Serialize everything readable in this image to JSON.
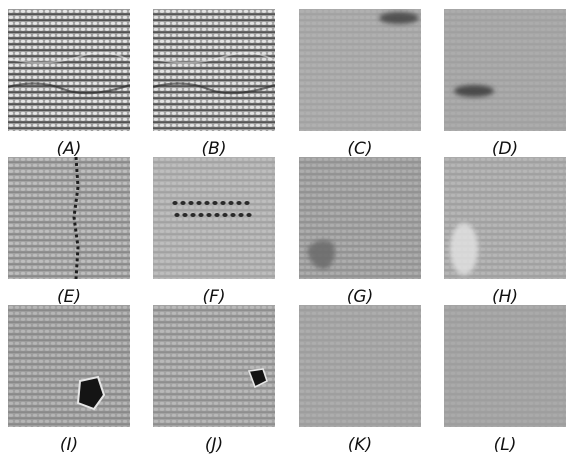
{
  "figure": {
    "panels": [
      {
        "id": "A",
        "label": "(A)",
        "shade": "#9a9a9a",
        "rib": "#3a3a3a",
        "hi": "#e9e9e9",
        "contrast": 0.95,
        "defect": "broken-yarn"
      },
      {
        "id": "B",
        "label": "(B)",
        "shade": "#9c9c9c",
        "rib": "#3d3d3d",
        "hi": "#e6e6e6",
        "contrast": 0.95,
        "defect": "broken-yarn"
      },
      {
        "id": "C",
        "label": "(C)",
        "shade": "#a9a9a9",
        "rib": "#8e8e8e",
        "hi": "#bdbdbd",
        "contrast": 0.35,
        "defect": "dark-stain-top"
      },
      {
        "id": "D",
        "label": "(D)",
        "shade": "#a6a6a6",
        "rib": "#8f8f8f",
        "hi": "#bababa",
        "contrast": 0.3,
        "defect": "dark-stain-left"
      },
      {
        "id": "E",
        "label": "(E)",
        "shade": "#a2a2a2",
        "rib": "#6e6e6e",
        "hi": "#d0d0d0",
        "contrast": 0.6,
        "defect": "vertical-line"
      },
      {
        "id": "F",
        "label": "(F)",
        "shade": "#b0b0b0",
        "rib": "#8a8a8a",
        "hi": "#cfcfcf",
        "contrast": 0.45,
        "defect": "dotted-row"
      },
      {
        "id": "G",
        "label": "(G)",
        "shade": "#9e9e9e",
        "rib": "#7a7a7a",
        "hi": "#bfbfbf",
        "contrast": 0.45,
        "defect": "blotch"
      },
      {
        "id": "H",
        "label": "(H)",
        "shade": "#aaaaaa",
        "rib": "#8a8a8a",
        "hi": "#c8c8c8",
        "contrast": 0.4,
        "defect": "light-blotch"
      },
      {
        "id": "I",
        "label": "(I)",
        "shade": "#9d9d9d",
        "rib": "#6f6f6f",
        "hi": "#c9c9c9",
        "contrast": 0.55,
        "defect": "hole-large"
      },
      {
        "id": "J",
        "label": "(J)",
        "shade": "#a2a2a2",
        "rib": "#747474",
        "hi": "#cbcbcb",
        "contrast": 0.55,
        "defect": "hole-small"
      },
      {
        "id": "K",
        "label": "(K)",
        "shade": "#a4a4a4",
        "rib": "#8b8b8b",
        "hi": "#bdbdbd",
        "contrast": 0.35,
        "defect": "none"
      },
      {
        "id": "L",
        "label": "(L)",
        "shade": "#a3a3a3",
        "rib": "#8c8c8c",
        "hi": "#bcbcbc",
        "contrast": 0.3,
        "defect": "none"
      }
    ]
  }
}
